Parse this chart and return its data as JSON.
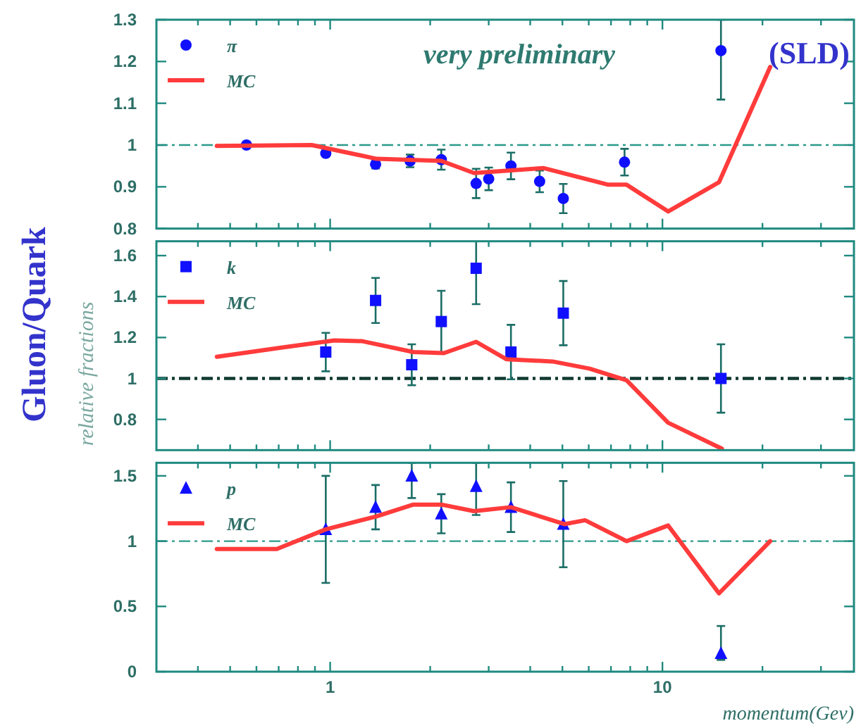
{
  "chart_data": [
    {
      "type": "scatter",
      "log": "x",
      "legend": "top left",
      "tick_labels": "y",
      "xlim": [
        0.3,
        37.7
      ],
      "xticks": [
        {
          "value": 0.4,
          "label": null
        },
        {
          "value": 0.5,
          "label": null
        },
        {
          "value": 0.6,
          "label": null
        },
        {
          "value": 0.7,
          "label": null
        },
        {
          "value": 0.8,
          "label": null
        },
        {
          "value": 0.9,
          "label": null
        },
        {
          "value": 1,
          "label": null
        },
        {
          "value": 2,
          "label": null
        },
        {
          "value": 3,
          "label": null
        },
        {
          "value": 4,
          "label": null
        },
        {
          "value": 5,
          "label": null
        },
        {
          "value": 6,
          "label": null
        },
        {
          "value": 7,
          "label": null
        },
        {
          "value": 8,
          "label": null
        },
        {
          "value": 9,
          "label": null
        },
        {
          "value": 10,
          "label": null
        },
        {
          "value": 20,
          "label": null
        },
        {
          "value": 30,
          "label": null
        }
      ],
      "ylim": [
        0.8,
        1.3
      ],
      "yticks": [
        0.8,
        0.9,
        1,
        1.1,
        1.2,
        1.3
      ],
      "ref_lines": [
        {
          "axis": "y",
          "value": 1,
          "color": "#2a9a8a",
          "line_style": "dashdot"
        }
      ],
      "annotations": [
        "very preliminary",
        "(SLD)"
      ],
      "series": [
        {
          "name": "π",
          "marker": "circle",
          "color": "#1010ff",
          "x": [
            0.56,
            0.97,
            1.37,
            1.74,
            2.16,
            2.75,
            3.0,
            3.5,
            4.27,
            5.03,
            7.69,
            15.0
          ],
          "values": [
            1.0,
            0.98,
            0.954,
            0.962,
            0.965,
            0.908,
            0.919,
            0.95,
            0.913,
            0.872,
            0.959,
            1.226
          ],
          "errors": [
            null,
            null,
            0.01,
            0.015,
            0.024,
            0.035,
            0.027,
            0.032,
            0.026,
            0.035,
            0.032,
            [
              1.109,
              1.3
            ]
          ]
        },
        {
          "name": "MC",
          "type": "line",
          "marker": "none",
          "color": "#ff3b3b",
          "x": [
            0.456,
            0.88,
            1.38,
            2.16,
            2.71,
            4.38,
            6.87,
            7.8,
            10.4,
            14.8,
            21.1
          ],
          "values": [
            0.998,
            1.0,
            0.967,
            0.962,
            0.933,
            0.945,
            0.905,
            0.905,
            0.841,
            0.911,
            1.187
          ]
        }
      ]
    },
    {
      "type": "scatter",
      "log": "x",
      "legend": "top left",
      "tick_labels": "y",
      "xlim": [
        0.3,
        37.7
      ],
      "xticks": [
        {
          "value": 0.4,
          "label": null
        },
        {
          "value": 0.5,
          "label": null
        },
        {
          "value": 0.6,
          "label": null
        },
        {
          "value": 0.7,
          "label": null
        },
        {
          "value": 0.8,
          "label": null
        },
        {
          "value": 0.9,
          "label": null
        },
        {
          "value": 1,
          "label": null
        },
        {
          "value": 2,
          "label": null
        },
        {
          "value": 3,
          "label": null
        },
        {
          "value": 4,
          "label": null
        },
        {
          "value": 5,
          "label": null
        },
        {
          "value": 6,
          "label": null
        },
        {
          "value": 7,
          "label": null
        },
        {
          "value": 8,
          "label": null
        },
        {
          "value": 9,
          "label": null
        },
        {
          "value": 10,
          "label": null
        },
        {
          "value": 20,
          "label": null
        },
        {
          "value": 30,
          "label": null
        }
      ],
      "ylim": [
        0.65,
        1.67
      ],
      "yticks": [
        0.8,
        1,
        1.2,
        1.4,
        1.6
      ],
      "ylabel": "relative fractions",
      "ref_lines": [
        {
          "axis": "y",
          "value": 1,
          "color": "#103a30",
          "line_style": "dashdot"
        }
      ],
      "annotations": [
        "Gluon/Quark"
      ],
      "series": [
        {
          "name": "k",
          "marker": "square",
          "color": "#1010ff",
          "x": [
            0.97,
            1.37,
            1.76,
            2.16,
            2.75,
            3.5,
            5.03,
            15.0
          ],
          "values": [
            1.129,
            1.381,
            1.067,
            1.278,
            1.538,
            1.129,
            1.319,
            1.0
          ],
          "errors": [
            0.094,
            0.11,
            0.1,
            0.15,
            0.175,
            0.133,
            0.157,
            0.167
          ]
        },
        {
          "name": "MC",
          "type": "line",
          "marker": "none",
          "color": "#ff3b3b",
          "x": [
            0.456,
            0.725,
            1.03,
            1.25,
            1.78,
            2.2,
            2.75,
            3.39,
            4.67,
            6.04,
            7.8,
            10.4,
            15.1
          ],
          "values": [
            1.106,
            1.152,
            1.186,
            1.182,
            1.129,
            1.124,
            1.179,
            1.094,
            1.083,
            1.048,
            0.991,
            0.784,
            0.657
          ]
        }
      ]
    },
    {
      "type": "scatter",
      "log": "x",
      "legend": "top left",
      "xlim": [
        0.3,
        37.7
      ],
      "xticks": [
        {
          "value": 0.4,
          "label": null
        },
        {
          "value": 0.5,
          "label": null
        },
        {
          "value": 0.6,
          "label": null
        },
        {
          "value": 0.7,
          "label": null
        },
        {
          "value": 0.8,
          "label": null
        },
        {
          "value": 0.9,
          "label": null
        },
        1,
        {
          "value": 2,
          "label": null
        },
        {
          "value": 3,
          "label": null
        },
        {
          "value": 4,
          "label": null
        },
        {
          "value": 5,
          "label": null
        },
        {
          "value": 6,
          "label": null
        },
        {
          "value": 7,
          "label": null
        },
        {
          "value": 8,
          "label": null
        },
        {
          "value": 9,
          "label": null
        },
        10,
        {
          "value": 20,
          "label": null
        },
        {
          "value": 30,
          "label": null
        }
      ],
      "ylim": [
        0,
        1.6
      ],
      "yticks": [
        0,
        0.5,
        1,
        1.5
      ],
      "xlabel": "momentum(Gev)",
      "ref_lines": [
        {
          "axis": "y",
          "value": 1,
          "color": "#2a9a8a",
          "line_style": "dashdot"
        }
      ],
      "series": [
        {
          "name": "p",
          "marker": "triangle",
          "color": "#1010ff",
          "x": [
            0.97,
            1.37,
            1.76,
            2.16,
            2.75,
            3.5,
            5.03,
            15.0
          ],
          "values": [
            1.09,
            1.26,
            1.5,
            1.21,
            1.42,
            1.26,
            1.13,
            0.14
          ],
          "errors": [
            0.41,
            0.17,
            [
              1.33,
              1.6
            ],
            0.15,
            [
              1.2,
              1.6
            ],
            0.19,
            0.33,
            [
              0.09,
              0.35
            ]
          ]
        },
        {
          "name": "MC",
          "type": "line",
          "marker": "none",
          "color": "#ff3b3b",
          "x": [
            0.456,
            0.691,
            0.97,
            1.38,
            1.78,
            2.16,
            2.71,
            3.5,
            5.07,
            5.85,
            7.8,
            10.4,
            14.8,
            21.1
          ],
          "values": [
            0.94,
            0.94,
            1.09,
            1.19,
            1.28,
            1.28,
            1.23,
            1.26,
            1.13,
            1.16,
            1.0,
            1.12,
            0.6,
            1.0
          ]
        }
      ]
    }
  ]
}
